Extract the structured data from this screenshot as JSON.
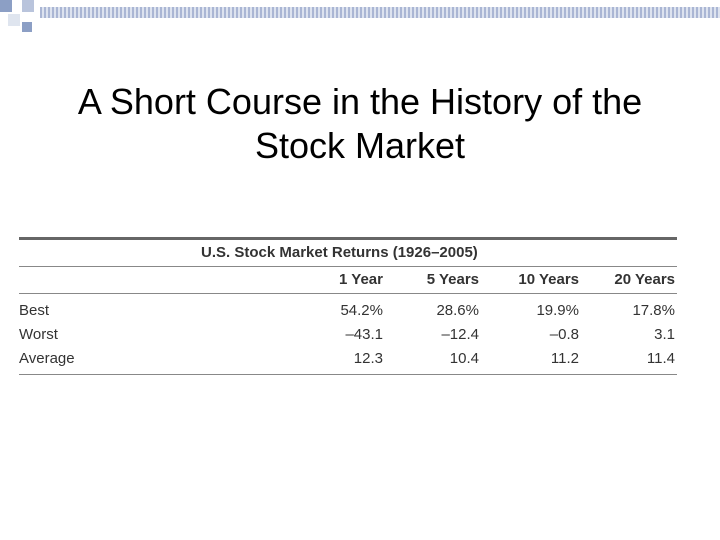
{
  "slide": {
    "title_line1": "A Short Course in the History of the",
    "title_line2": "Stock Market"
  },
  "table": {
    "caption": "U.S. Stock Market Returns (1926–2005)",
    "columns": [
      "",
      "1 Year",
      "5 Years",
      "10 Years",
      "20 Years"
    ],
    "rows": [
      {
        "label": "Best",
        "values": [
          "54.2%",
          "28.6%",
          "19.9%",
          "17.8%"
        ]
      },
      {
        "label": "Worst",
        "values": [
          "–43.1",
          "–12.4",
          "–0.8",
          "3.1"
        ]
      },
      {
        "label": "Average",
        "values": [
          "12.3",
          "10.4",
          "11.2",
          "11.4"
        ]
      }
    ]
  },
  "colors": {
    "accent": "#8c9fc5",
    "stripe": "#aab6d4"
  }
}
